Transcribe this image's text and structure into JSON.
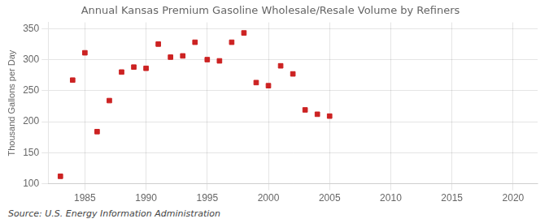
{
  "chart_data": {
    "type": "scatter",
    "title": "Annual Kansas Premium Gasoline Wholesale/Resale Volume by Refiners",
    "ylabel": "Thousand Gallons per Day",
    "annotations": [
      "Source: U.S. Energy Information Administration"
    ],
    "x": [
      1983,
      1984,
      1985,
      1986,
      1987,
      1988,
      1989,
      1990,
      1991,
      1992,
      1993,
      1994,
      1995,
      1996,
      1997,
      1998,
      1999,
      2000,
      2001,
      2002,
      2003,
      2004,
      2005
    ],
    "values": [
      112,
      267,
      311,
      184,
      234,
      280,
      288,
      286,
      325,
      304,
      306,
      328,
      300,
      298,
      328,
      343,
      263,
      258,
      290,
      277,
      219,
      212,
      209
    ],
    "color": "#cc2222",
    "marker": "square",
    "xlim": [
      1982,
      2022
    ],
    "ylim": [
      100,
      360
    ],
    "xticks": [
      1985,
      1990,
      1995,
      2000,
      2005,
      2010,
      2015,
      2020
    ],
    "yticks": [
      100,
      150,
      200,
      250,
      300,
      350
    ],
    "grid": true
  }
}
